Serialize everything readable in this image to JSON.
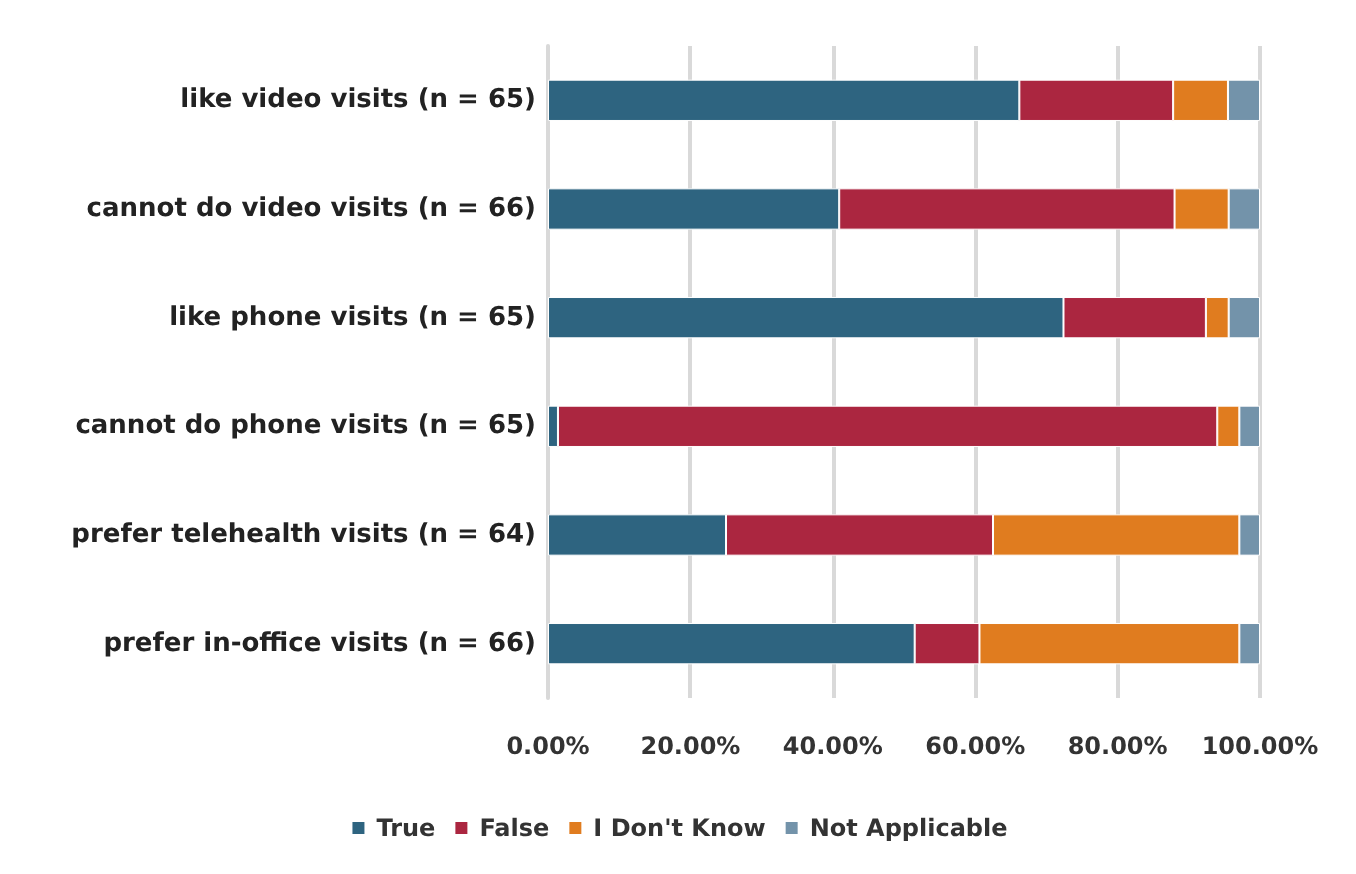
{
  "chart_data": {
    "type": "bar",
    "orientation": "horizontal",
    "stacked": true,
    "categories": [
      "like video visits (n = 65)",
      "cannot do video visits (n = 66)",
      "like phone visits (n = 65)",
      "cannot do phone visits (n = 65)",
      "prefer telehealth visits (n = 64)",
      "prefer in-office visits (n = 66)"
    ],
    "series": [
      {
        "name": "True",
        "color": "#2e6480",
        "values": [
          66.2,
          40.9,
          72.4,
          1.4,
          25.0,
          51.5
        ]
      },
      {
        "name": "False",
        "color": "#ab2640",
        "values": [
          21.6,
          47.1,
          20.0,
          92.6,
          37.5,
          9.1
        ]
      },
      {
        "name": "I Don't Know",
        "color": "#e07c1f",
        "values": [
          7.7,
          7.6,
          3.2,
          3.1,
          34.6,
          36.5
        ]
      },
      {
        "name": "Not Applicable",
        "color": "#7393aa",
        "values": [
          4.5,
          4.4,
          4.4,
          2.9,
          2.9,
          2.9
        ]
      }
    ],
    "xlim": [
      0,
      100
    ],
    "xticks": [
      {
        "value": 0,
        "label": "0.00%"
      },
      {
        "value": 20,
        "label": "20.00%"
      },
      {
        "value": 40,
        "label": "40.00%"
      },
      {
        "value": 60,
        "label": "60.00%"
      },
      {
        "value": 80,
        "label": "80.00%"
      },
      {
        "value": 100,
        "label": "100.00%"
      }
    ],
    "grid": "x",
    "legend": "bottom"
  }
}
